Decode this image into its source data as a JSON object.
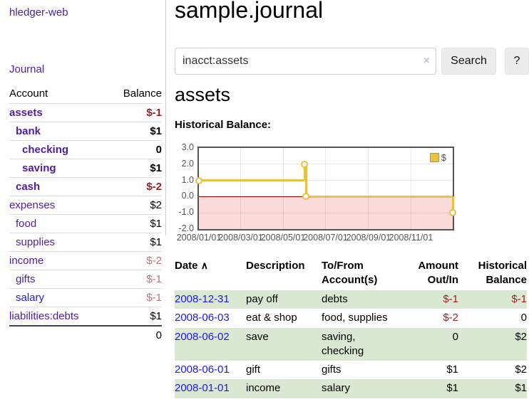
{
  "colors": {
    "link_purple": "#4e1e9e",
    "link_blue": "#1b1be0",
    "negative_strong": "#9d1d1d",
    "negative_dim": "#bd7373",
    "row_stripe_green": "#dbe8d1",
    "chart_series_gold": "#e9c045",
    "chart_negative_region": "#fbdada",
    "chart_zero_line": "#990000"
  },
  "sidebar": {
    "app_title": "hledger-web",
    "nav_journal": "Journal",
    "accounts_table": {
      "headers": {
        "account": "Account",
        "balance": "Balance"
      },
      "rows": [
        {
          "name": "assets",
          "indent": 1,
          "bold": true,
          "name_style": "purple",
          "balance": "$-1",
          "balance_style": "neg-strong"
        },
        {
          "name": "bank",
          "indent": 2,
          "bold": true,
          "name_style": "purple",
          "balance": "$1",
          "balance_style": "pos"
        },
        {
          "name": "checking",
          "indent": 3,
          "bold": true,
          "name_style": "purple",
          "balance": "0",
          "balance_style": "pos"
        },
        {
          "name": "saving",
          "indent": 3,
          "bold": true,
          "name_style": "purple",
          "balance": "$1",
          "balance_style": "pos"
        },
        {
          "name": "cash",
          "indent": 2,
          "bold": true,
          "name_style": "purple",
          "balance": "$-2",
          "balance_style": "neg-strong"
        },
        {
          "name": "expenses",
          "indent": 1,
          "bold": false,
          "name_style": "purple",
          "balance": "$2",
          "balance_style": "pos"
        },
        {
          "name": "food",
          "indent": 2,
          "bold": false,
          "name_style": "purple",
          "balance": "$1",
          "balance_style": "pos"
        },
        {
          "name": "supplies",
          "indent": 2,
          "bold": false,
          "name_style": "purple",
          "balance": "$1",
          "balance_style": "pos"
        },
        {
          "name": "income",
          "indent": 1,
          "bold": false,
          "name_style": "purple",
          "balance": "$-2",
          "balance_style": "neg-dim"
        },
        {
          "name": "gifts",
          "indent": 2,
          "bold": false,
          "name_style": "purple",
          "balance": "$-1",
          "balance_style": "neg-dim"
        },
        {
          "name": "salary",
          "indent": 2,
          "bold": false,
          "name_style": "blue",
          "balance": "$-1",
          "balance_style": "neg-dim"
        },
        {
          "name": "liabilities:debts",
          "indent": 1,
          "bold": false,
          "name_style": "purple",
          "balance": "$1",
          "balance_style": "pos"
        }
      ],
      "total": "0"
    }
  },
  "main": {
    "page_title": "sample.journal",
    "search": {
      "value": "inacct:assets",
      "clear_icon": "×",
      "button_label": "Search",
      "help_label": "?"
    },
    "section_title": "assets",
    "chart_label": "Historical Balance:"
  },
  "chart_data": {
    "type": "line",
    "title": "Historical Balance",
    "step": true,
    "legend_position": "top-right",
    "series": [
      {
        "name": "$",
        "color": "#e9c045",
        "points": [
          [
            "2008-01-01",
            1
          ],
          [
            "2008-06-01",
            2
          ],
          [
            "2008-06-03",
            0
          ],
          [
            "2008-12-31",
            -1
          ]
        ]
      }
    ],
    "x_range": [
      "2008-01-01",
      "2008-12-31"
    ],
    "ylim": [
      -2.0,
      3.0
    ],
    "y_ticks": [
      "3.0",
      "2.0",
      "1.0",
      "0.0",
      "-1.0",
      "-2.0"
    ],
    "x_ticks": [
      "2008/01/01",
      "2008/03/01",
      "2008/05/01",
      "2008/07/01",
      "2008/09/01",
      "2008/11/01"
    ],
    "grid": true,
    "negative_region_below": 0
  },
  "register_table": {
    "headers": {
      "date": "Date",
      "sort_arrow": "∧",
      "description": "Description",
      "tofrom": "To/From Account(s)",
      "amount": "Amount Out/In",
      "balance": "Historical Balance"
    },
    "rows": [
      {
        "date": "2008-12-31",
        "description": "pay off",
        "accounts_lines": [
          "debts"
        ],
        "amount": "$-1",
        "amount_neg": true,
        "balance": "$-1",
        "balance_neg": true,
        "shaded": true
      },
      {
        "date": "2008-06-03",
        "description": "eat & shop",
        "accounts_lines": [
          "food, supplies"
        ],
        "amount": "$-2",
        "amount_neg": true,
        "balance": "0",
        "balance_neg": false,
        "shaded": false
      },
      {
        "date": "2008-06-02",
        "description": "save",
        "accounts_lines": [
          "saving,",
          "checking"
        ],
        "amount": "0",
        "amount_neg": false,
        "balance": "$2",
        "balance_neg": false,
        "shaded": true
      },
      {
        "date": "2008-06-01",
        "description": "gift",
        "accounts_lines": [
          "gifts"
        ],
        "amount": "$1",
        "amount_neg": false,
        "balance": "$2",
        "balance_neg": false,
        "shaded": false
      },
      {
        "date": "2008-01-01",
        "description": "income",
        "accounts_lines": [
          "salary"
        ],
        "amount": "$1",
        "amount_neg": false,
        "balance": "$1",
        "balance_neg": false,
        "shaded": true
      }
    ]
  }
}
